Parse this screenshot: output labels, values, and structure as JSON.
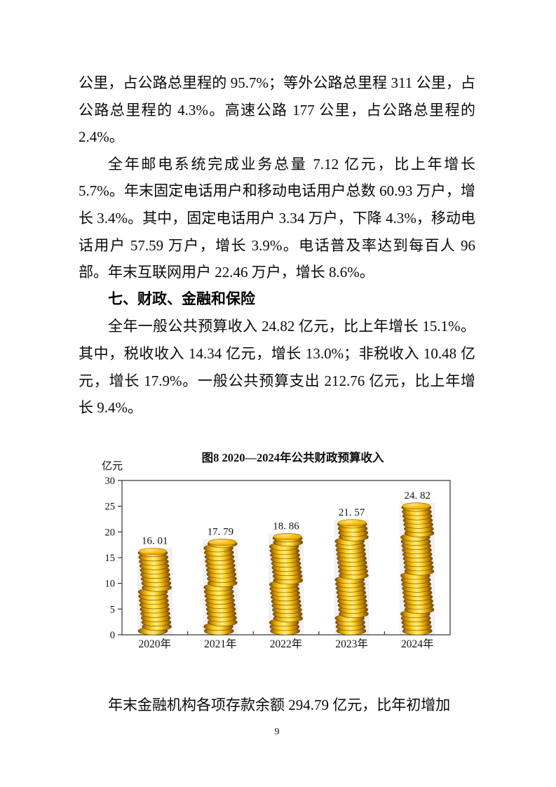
{
  "document": {
    "paragraphs": {
      "road_continued": "公里，占公路总里程的 95.7%；等外公路总里程 311 公里，占公路总里程的 4.3%。高速公路 177 公里，占公路总里程的 2.4%。",
      "post_telecom": "全年邮电系统完成业务总量 7.12 亿元，比上年增长 5.7%。年末固定电话用户和移动电话用户总数 60.93 万户，增长 3.4%。其中，固定电话用户 3.34 万户，下降 4.3%，移动电话用户 57.59 万户，增长 3.9%。电话普及率达到每百人 96 部。年末互联网用户 22.46 万户，增长 8.6%。",
      "budget": "全年一般公共预算收入 24.82 亿元，比上年增长 15.1%。其中，税收收入 14.34 亿元，增长 13.0%；非税收入 10.48 亿元，增长 17.9%。一般公共预算支出 212.76 亿元，比上年增长 9.4%。",
      "deposits": "年末金融机构各项存款余额 294.79 亿元，比年初增加"
    },
    "section_heading": "七、财政、金融和保险",
    "page_number": "9"
  },
  "chart_data": {
    "type": "bar",
    "title": "图8 2020—2024年公共财政预算收入",
    "ylabel": "亿元",
    "xlabel": "",
    "categories": [
      "2020年",
      "2021年",
      "2022年",
      "2023年",
      "2024年"
    ],
    "values": [
      16.01,
      17.79,
      18.86,
      21.57,
      24.82
    ],
    "data_labels": [
      "16. 01",
      "17. 79",
      "18. 86",
      "21. 57",
      "24. 82"
    ],
    "ylim": [
      0,
      30
    ],
    "yticks": [
      0,
      5,
      10,
      15,
      20,
      25,
      30
    ],
    "grid": false,
    "legend": "none",
    "bar_style": "gold-coin-stack",
    "colors": {
      "coin_highlight": "#ffeb80",
      "coin_body": "#ffd426",
      "coin_shadow": "#7c4a00",
      "coin_top": "#f2b400",
      "axis": "#3f3f3f",
      "text": "#111111"
    }
  }
}
